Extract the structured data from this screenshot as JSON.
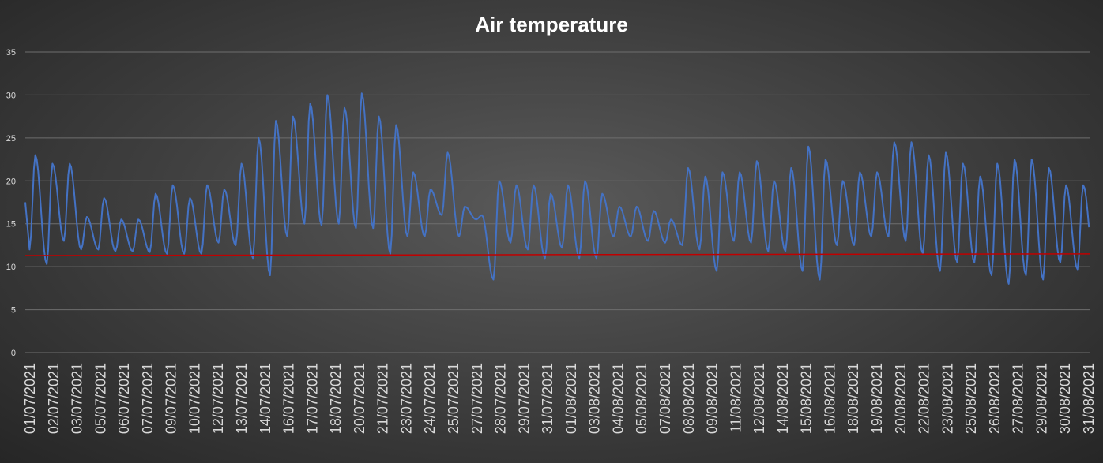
{
  "colors": {
    "temperature_line": "#4472c4",
    "reference_line": "#c00000",
    "gridline": "#6e6e6e",
    "text": "#d9d9d9",
    "title": "#ffffff"
  },
  "chart_data": {
    "type": "line",
    "title": "Air temperature",
    "xlabel": "",
    "ylabel": "",
    "ylim": [
      0,
      35
    ],
    "y_ticks": [
      0,
      5,
      10,
      15,
      20,
      25,
      30,
      35
    ],
    "grid": true,
    "legend": "none",
    "x_tick_labels": [
      "01/07/2021",
      "02/07/2021",
      "03/07/2021",
      "05/07/2021",
      "06/07/2021",
      "07/07/2021",
      "09/07/2021",
      "10/07/2021",
      "12/07/2021",
      "13/07/2021",
      "14/07/2021",
      "16/07/2021",
      "17/07/2021",
      "18/07/2021",
      "20/07/2021",
      "21/07/2021",
      "23/07/2021",
      "24/07/2021",
      "25/07/2021",
      "27/07/2021",
      "28/07/2021",
      "29/07/2021",
      "31/07/2021",
      "01/08/2021",
      "03/08/2021",
      "04/08/2021",
      "05/08/2021",
      "07/08/2021",
      "08/08/2021",
      "09/08/2021",
      "11/08/2021",
      "12/08/2021",
      "14/08/2021",
      "15/08/2021",
      "16/08/2021",
      "18/08/2021",
      "19/08/2021",
      "20/08/2021",
      "22/08/2021",
      "23/08/2021",
      "25/08/2021",
      "26/08/2021",
      "27/08/2021",
      "29/08/2021",
      "30/08/2021",
      "31/08/2021"
    ],
    "series": [
      {
        "color": "#4472c4",
        "x": [
          "01/07/2021",
          "02/07/2021",
          "03/07/2021",
          "04/07/2021",
          "05/07/2021",
          "06/07/2021",
          "07/07/2021",
          "08/07/2021",
          "09/07/2021",
          "10/07/2021",
          "11/07/2021",
          "12/07/2021",
          "13/07/2021",
          "14/07/2021",
          "15/07/2021",
          "16/07/2021",
          "17/07/2021",
          "18/07/2021",
          "19/07/2021",
          "20/07/2021",
          "21/07/2021",
          "22/07/2021",
          "23/07/2021",
          "24/07/2021",
          "25/07/2021",
          "26/07/2021",
          "27/07/2021",
          "28/07/2021",
          "29/07/2021",
          "30/07/2021",
          "31/07/2021",
          "01/08/2021",
          "02/08/2021",
          "03/08/2021",
          "04/08/2021",
          "05/08/2021",
          "06/08/2021",
          "07/08/2021",
          "08/08/2021",
          "09/08/2021",
          "10/08/2021",
          "11/08/2021",
          "12/08/2021",
          "13/08/2021",
          "14/08/2021",
          "15/08/2021",
          "16/08/2021",
          "17/08/2021",
          "18/08/2021",
          "19/08/2021",
          "20/08/2021",
          "21/08/2021",
          "22/08/2021",
          "23/08/2021",
          "24/08/2021",
          "25/08/2021",
          "26/08/2021",
          "27/08/2021",
          "28/08/2021",
          "29/08/2021",
          "30/08/2021",
          "31/08/2021"
        ],
        "daily_min": [
          12.0,
          10.3,
          13.0,
          12.0,
          12.0,
          11.8,
          11.8,
          11.7,
          11.5,
          11.5,
          11.5,
          12.8,
          12.5,
          11.0,
          9.0,
          13.5,
          15.0,
          14.8,
          15.0,
          14.5,
          14.5,
          11.5,
          13.5,
          13.5,
          16.0,
          13.5,
          15.5,
          8.5,
          12.8,
          12.0,
          11.0,
          12.2,
          11.0,
          11.0,
          13.5,
          13.5,
          13.0,
          12.8,
          12.5,
          12.0,
          9.5,
          13.0,
          12.8,
          11.8,
          11.8,
          9.5,
          8.5,
          12.5,
          12.5,
          13.5,
          13.5,
          13.0,
          11.5,
          9.5,
          10.5,
          10.5,
          9.0,
          8.0,
          9.0,
          8.5,
          10.5,
          9.7
        ],
        "daily_max": [
          23.0,
          22.0,
          22.0,
          15.8,
          18.0,
          15.5,
          15.5,
          18.5,
          19.5,
          18.0,
          19.5,
          19.0,
          22.0,
          25.0,
          27.0,
          27.5,
          29.0,
          30.0,
          28.5,
          30.2,
          27.5,
          26.5,
          21.0,
          19.0,
          23.3,
          17.0,
          16.0,
          20.0,
          19.5,
          19.5,
          18.5,
          19.5,
          20.0,
          18.5,
          17.0,
          17.0,
          16.5,
          15.5,
          21.5,
          20.5,
          21.0,
          21.0,
          22.3,
          20.0,
          21.5,
          24.0,
          22.5,
          20.0,
          21.0,
          21.0,
          24.5,
          24.5,
          23.0,
          23.3,
          22.0,
          20.5,
          22.0,
          22.5,
          22.5,
          21.5,
          19.5,
          19.5
        ]
      },
      {
        "color": "#c00000",
        "x": [
          "01/07/2021",
          "31/08/2021"
        ],
        "values": [
          11.3,
          11.5
        ]
      }
    ]
  }
}
